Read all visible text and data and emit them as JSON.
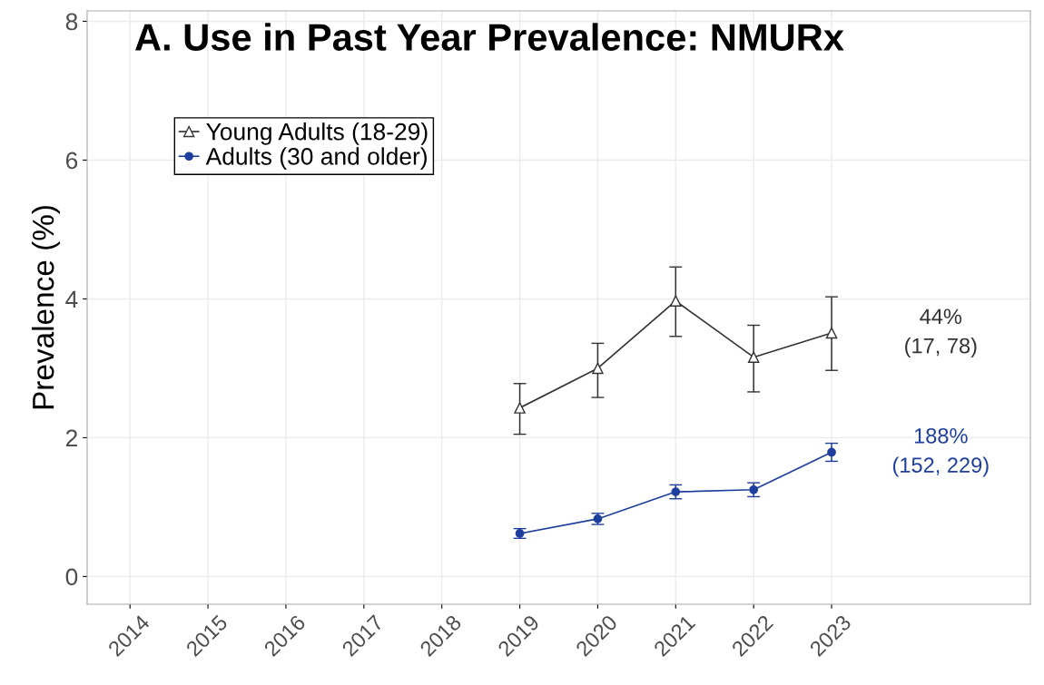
{
  "chart_data": {
    "type": "line",
    "title": "A. Use in Past Year Prevalence: NMURx",
    "ylabel": "Prevalence (%)",
    "x": [
      2019,
      2020,
      2021,
      2022,
      2023
    ],
    "series": [
      {
        "name": "Young Adults (18-29)",
        "color": "#333333",
        "marker": "triangle",
        "values": [
          2.43,
          3.0,
          3.97,
          3.16,
          3.51
        ],
        "errors": [
          [
            2.05,
            2.78
          ],
          [
            2.58,
            3.36
          ],
          [
            3.46,
            4.46
          ],
          [
            2.66,
            3.62
          ],
          [
            2.97,
            4.03
          ]
        ]
      },
      {
        "name": "Adults (30 and older)",
        "color": "#1f3f9e",
        "marker": "circle",
        "values": [
          0.62,
          0.83,
          1.22,
          1.25,
          1.79
        ],
        "errors": [
          0.07,
          0.08,
          0.1,
          0.1,
          0.13
        ]
      }
    ],
    "annotations": [
      "44%\n(17, 78)",
      "188%\n(152, 229)"
    ],
    "xlim": [
      2013.45,
      2025.55
    ],
    "xticks": [
      2014,
      2015,
      2016,
      2017,
      2018,
      2019,
      2020,
      2021,
      2022,
      2023
    ],
    "ylim": [
      -0.4,
      8.15
    ],
    "yticks": [
      0,
      2,
      4,
      6,
      8
    ],
    "grid": true,
    "legend": "top left",
    "line_style": "solid"
  }
}
